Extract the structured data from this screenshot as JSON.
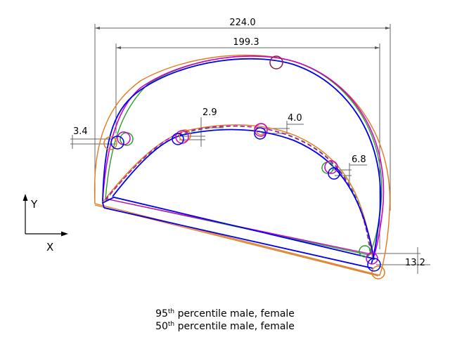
{
  "dimensions": {
    "overall_width": "224.0",
    "inner_width": "199.3",
    "offset_left": "3.4",
    "offset_top_left": "2.9",
    "offset_top_mid": "4.0",
    "offset_right": "6.8",
    "offset_bottom_right": "13.2"
  },
  "axes": {
    "y": "Y",
    "x": "X"
  },
  "legend": {
    "line1": {
      "number": "95",
      "suffix": "th",
      "text": " percentile male, female"
    },
    "line2": {
      "number": "50",
      "suffix": "th",
      "text": " percentile male, female"
    }
  },
  "colors": {
    "male_95": "#0000ee",
    "female_95": "#cc00cc",
    "male_50": "#e07a20",
    "female_50": "#2aa02a",
    "circle_dark": "#8b1a4a",
    "dimension_line": "#666666"
  }
}
